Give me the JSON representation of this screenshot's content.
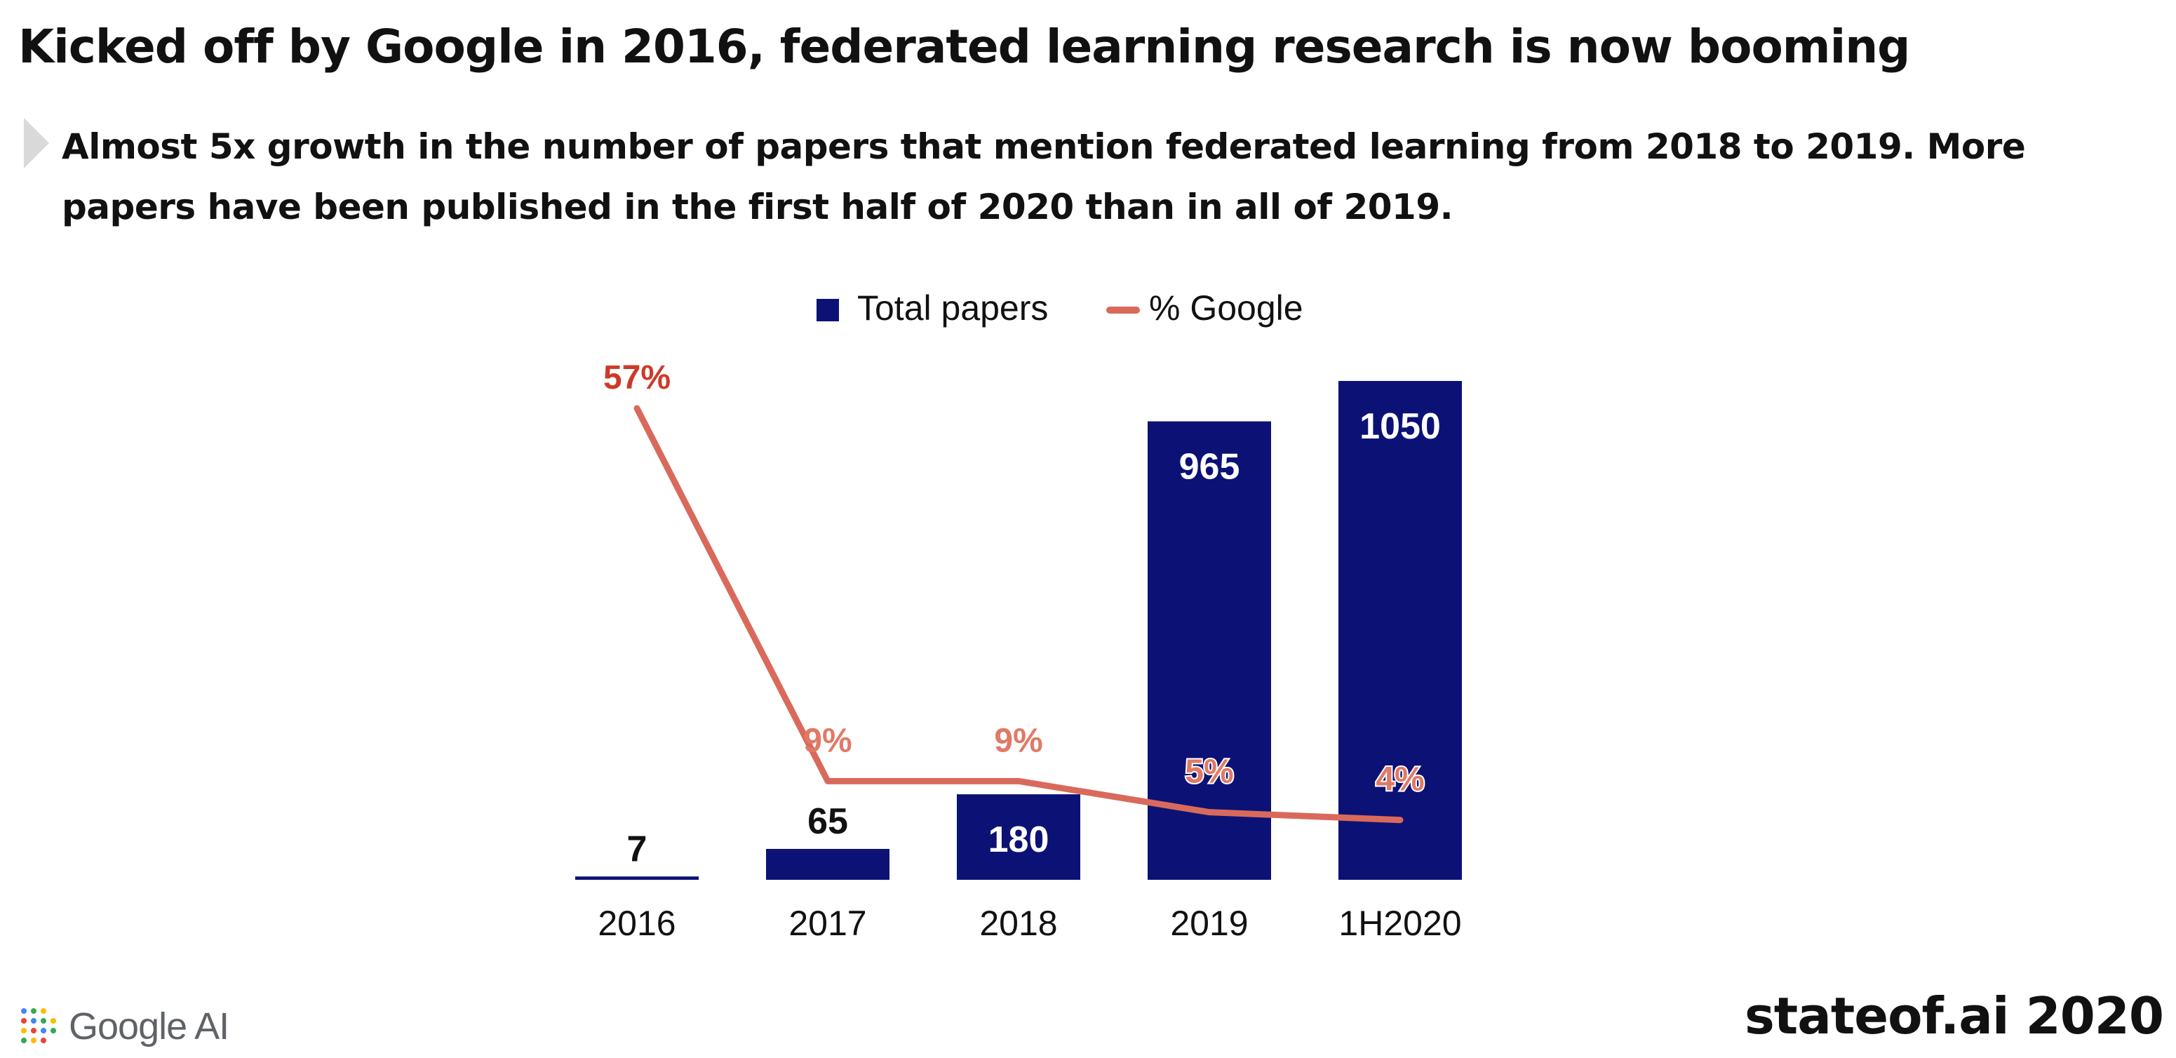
{
  "header": {
    "title": "Kicked off by Google in 2016, federated learning research is now booming",
    "subtitle": "Almost 5x growth in the number of papers that mention federated learning from 2018 to 2019. More papers have been published in the first half of 2020 than in all of 2019."
  },
  "footer": {
    "logo_text": "Google AI",
    "tag": "stateof.ai 2020"
  },
  "colors": {
    "bar": "#0c1275",
    "line": "#d96a5b",
    "pct_label": "#cc3b28",
    "pct_label_light": "#e07a66"
  },
  "chart_data": {
    "type": "bar",
    "categories": [
      "2016",
      "2017",
      "2018",
      "2019",
      "1H2020"
    ],
    "series": [
      {
        "name": "Total papers",
        "type": "bar",
        "values": [
          7,
          65,
          180,
          965,
          1050
        ],
        "labels": [
          "7",
          "65",
          "180",
          "965",
          "1050"
        ]
      },
      {
        "name": "% Google",
        "type": "line",
        "values": [
          57,
          9,
          9,
          5,
          4
        ],
        "labels": [
          "57%",
          "9%",
          "9%",
          "5%",
          "4%"
        ]
      }
    ],
    "legend": [
      "Total papers",
      "% Google"
    ],
    "legend_position": "top-center",
    "bar_ylim": [
      0,
      1050
    ],
    "line_ylim": [
      0,
      57
    ],
    "grid": false
  }
}
